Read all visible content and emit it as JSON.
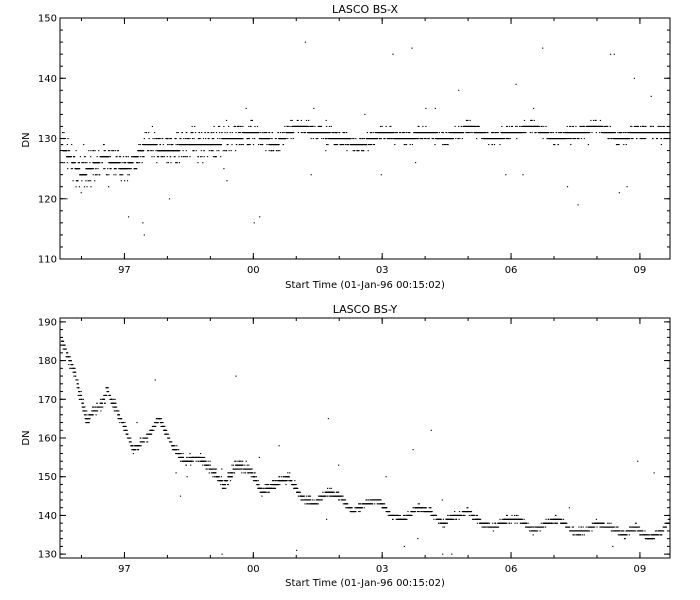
{
  "chart_data": [
    {
      "type": "scatter",
      "title": "LASCO BS-X",
      "xlabel": "Start Time (01-Jan-96 00:15:02)",
      "ylabel": "DN",
      "ylim": [
        110,
        150
      ],
      "xlim": [
        1996.0,
        2010.2
      ],
      "y_ticks": [
        "110",
        "120",
        "130",
        "140",
        "150"
      ],
      "x_ticks": [
        {
          "label": "97",
          "value": 1997.5
        },
        {
          "label": "00",
          "value": 2000.5
        },
        {
          "label": "03",
          "value": 2003.5
        },
        {
          "label": "06",
          "value": 2006.5
        },
        {
          "label": "09",
          "value": 2009.5
        }
      ],
      "grid": false,
      "trend": [
        [
          1996.0,
          129
        ],
        [
          1996.5,
          124
        ],
        [
          1997.0,
          127
        ],
        [
          1997.5,
          125
        ],
        [
          1998.0,
          129
        ],
        [
          1998.5,
          128
        ],
        [
          1999.0,
          129
        ],
        [
          1999.5,
          129
        ],
        [
          2000.0,
          130
        ],
        [
          2000.5,
          131
        ],
        [
          2001.0,
          129
        ],
        [
          2001.5,
          132
        ],
        [
          2002.0,
          131
        ],
        [
          2002.5,
          130
        ],
        [
          2003.0,
          129
        ],
        [
          2003.5,
          131
        ],
        [
          2004.0,
          130
        ],
        [
          2004.5,
          131
        ],
        [
          2005.0,
          130
        ],
        [
          2005.5,
          132
        ],
        [
          2006.0,
          130
        ],
        [
          2006.5,
          131
        ],
        [
          2007.0,
          132
        ],
        [
          2007.5,
          130
        ],
        [
          2008.0,
          131
        ],
        [
          2008.5,
          132
        ],
        [
          2009.0,
          130
        ],
        [
          2009.5,
          131
        ],
        [
          2010.2,
          131
        ]
      ],
      "band_halfwidth": [
        [
          1996.0,
          3.5
        ],
        [
          1997.0,
          2.5
        ],
        [
          1998.0,
          2.0
        ],
        [
          1999.0,
          3.0
        ],
        [
          2000.0,
          2.2
        ],
        [
          2001.0,
          1.5
        ],
        [
          2003.0,
          1.2
        ],
        [
          2006.0,
          1.0
        ],
        [
          2010.2,
          1.0
        ]
      ],
      "outlier_fraction": 0.03
    },
    {
      "type": "scatter",
      "title": "LASCO BS-Y",
      "xlabel": "Start Time (01-Jan-96 00:15:02)",
      "ylabel": "DN",
      "ylim": [
        129,
        191
      ],
      "xlim": [
        1996.0,
        2010.2
      ],
      "y_ticks": [
        "130",
        "140",
        "150",
        "160",
        "170",
        "180",
        "190"
      ],
      "x_ticks": [
        {
          "label": "97",
          "value": 1997.5
        },
        {
          "label": "00",
          "value": 2000.5
        },
        {
          "label": "03",
          "value": 2003.5
        },
        {
          "label": "06",
          "value": 2006.5
        },
        {
          "label": "09",
          "value": 2009.5
        }
      ],
      "grid": false,
      "trend": [
        [
          1996.0,
          186
        ],
        [
          1996.3,
          178
        ],
        [
          1996.6,
          165
        ],
        [
          1996.9,
          168
        ],
        [
          1997.1,
          172
        ],
        [
          1997.4,
          165
        ],
        [
          1997.7,
          157
        ],
        [
          1998.0,
          160
        ],
        [
          1998.3,
          165
        ],
        [
          1998.6,
          158
        ],
        [
          1998.9,
          154
        ],
        [
          1999.2,
          155
        ],
        [
          1999.5,
          152
        ],
        [
          1999.8,
          148
        ],
        [
          2000.1,
          153
        ],
        [
          2000.4,
          152
        ],
        [
          2000.7,
          146
        ],
        [
          2001.0,
          148
        ],
        [
          2001.3,
          150
        ],
        [
          2001.6,
          145
        ],
        [
          2001.9,
          143
        ],
        [
          2002.2,
          146
        ],
        [
          2002.5,
          145
        ],
        [
          2002.8,
          141
        ],
        [
          2003.1,
          143
        ],
        [
          2003.4,
          144
        ],
        [
          2003.7,
          140
        ],
        [
          2004.0,
          139
        ],
        [
          2004.3,
          142
        ],
        [
          2004.6,
          141
        ],
        [
          2004.9,
          138
        ],
        [
          2005.2,
          140
        ],
        [
          2005.5,
          141
        ],
        [
          2005.8,
          138
        ],
        [
          2006.1,
          137
        ],
        [
          2006.4,
          139
        ],
        [
          2006.7,
          139
        ],
        [
          2007.0,
          136
        ],
        [
          2007.3,
          138
        ],
        [
          2007.6,
          139
        ],
        [
          2007.9,
          136
        ],
        [
          2008.2,
          136
        ],
        [
          2008.5,
          138
        ],
        [
          2008.8,
          137
        ],
        [
          2009.1,
          135
        ],
        [
          2009.4,
          137
        ],
        [
          2009.7,
          134
        ],
        [
          2010.0,
          136
        ],
        [
          2010.2,
          139
        ]
      ],
      "band_halfwidth": [
        [
          1996.0,
          2.0
        ],
        [
          1998.5,
          1.0
        ],
        [
          2000.0,
          1.5
        ],
        [
          2003.0,
          0.8
        ],
        [
          2010.2,
          0.8
        ]
      ],
      "outlier_fraction": 0.02
    }
  ]
}
